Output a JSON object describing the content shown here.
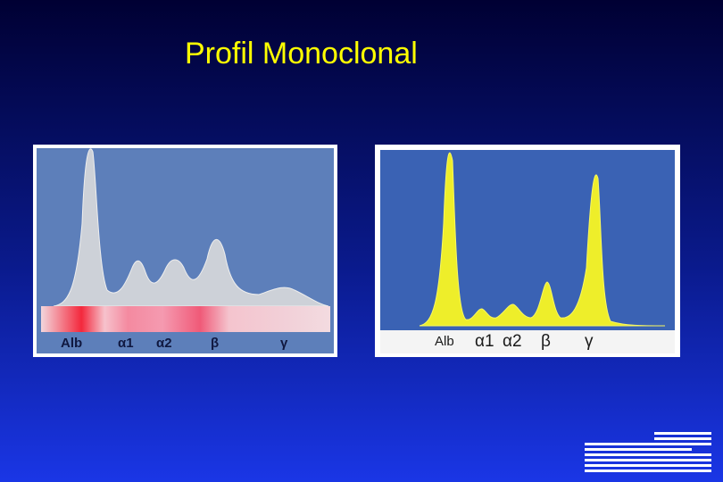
{
  "title": "Profil Monoclonal",
  "panels": [
    {
      "labels": [
        "Alb",
        "α1",
        "α2",
        "β",
        "γ"
      ]
    },
    {
      "labels": [
        "Alb",
        "α1",
        "α2",
        "β",
        "γ"
      ]
    }
  ]
}
